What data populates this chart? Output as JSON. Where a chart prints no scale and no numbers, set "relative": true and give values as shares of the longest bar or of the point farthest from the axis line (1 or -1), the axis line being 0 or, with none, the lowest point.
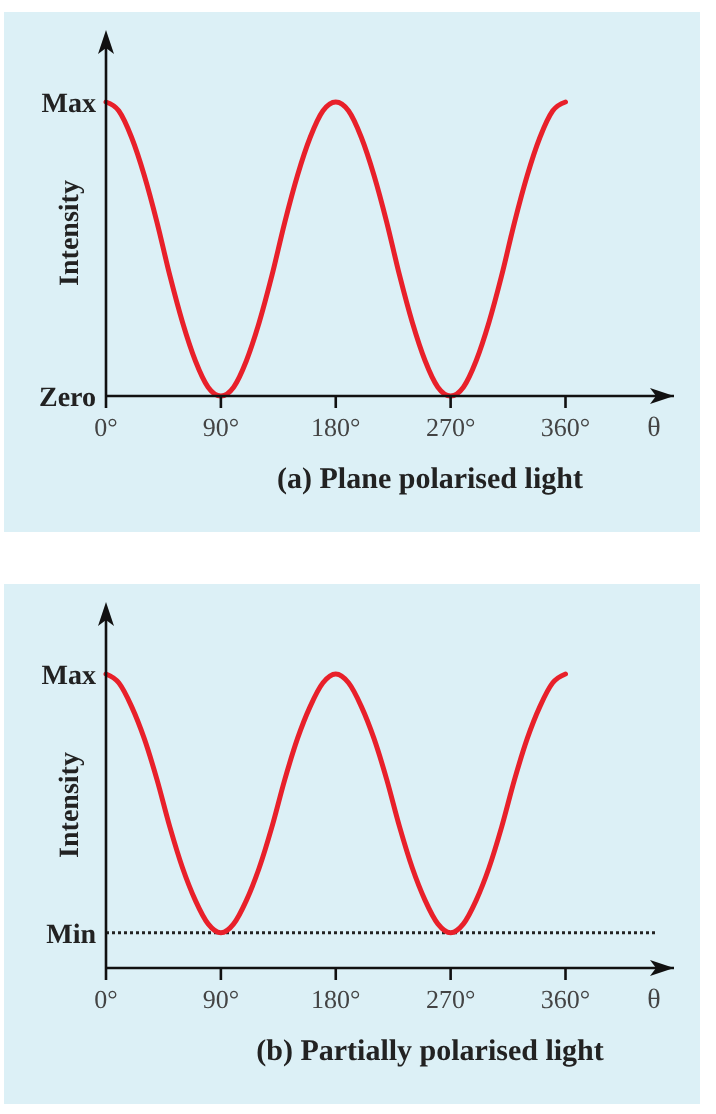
{
  "chart_data": [
    {
      "type": "line",
      "title": "(a) Plane polarised light",
      "xlabel": "θ",
      "ylabel": "Intensity",
      "relative": true,
      "x": [
        0,
        10,
        20,
        30,
        40,
        50,
        60,
        70,
        80,
        90,
        100,
        110,
        120,
        130,
        140,
        150,
        160,
        170,
        180,
        190,
        200,
        210,
        220,
        230,
        240,
        250,
        260,
        270,
        280,
        290,
        300,
        310,
        320,
        330,
        340,
        350,
        360
      ],
      "series": [
        {
          "color": "#e8202a",
          "values": [
            1,
            0.97,
            0.88,
            0.75,
            0.59,
            0.41,
            0.25,
            0.12,
            0.03,
            0,
            0.03,
            0.12,
            0.25,
            0.41,
            0.59,
            0.75,
            0.88,
            0.97,
            1,
            0.97,
            0.88,
            0.75,
            0.59,
            0.41,
            0.25,
            0.12,
            0.03,
            0,
            0.03,
            0.12,
            0.25,
            0.41,
            0.59,
            0.75,
            0.88,
            0.97,
            1
          ]
        }
      ],
      "xlim": [
        0,
        445
      ],
      "xticks": [
        {
          "value": 0,
          "label": "0°"
        },
        {
          "value": 90,
          "label": "90°"
        },
        {
          "value": 180,
          "label": "180°"
        },
        {
          "value": 270,
          "label": "270°"
        },
        {
          "value": 360,
          "label": "360°"
        }
      ],
      "annotations": [
        "Max",
        "Zero"
      ],
      "marker": "none",
      "line_style": "solid"
    },
    {
      "type": "line",
      "title": "(b) Partially polarised light",
      "xlabel": "θ",
      "ylabel": "Intensity",
      "relative": true,
      "x": [
        0,
        10,
        20,
        30,
        40,
        50,
        60,
        70,
        80,
        90,
        100,
        110,
        120,
        130,
        140,
        150,
        160,
        170,
        180,
        190,
        200,
        210,
        220,
        230,
        240,
        250,
        260,
        270,
        280,
        290,
        300,
        310,
        320,
        330,
        340,
        350,
        360
      ],
      "series": [
        {
          "color": "#e8202a",
          "values": [
            1,
            0.97,
            0.89,
            0.78,
            0.64,
            0.48,
            0.34,
            0.23,
            0.15,
            0.12,
            0.15,
            0.23,
            0.34,
            0.48,
            0.64,
            0.78,
            0.89,
            0.97,
            1,
            0.97,
            0.89,
            0.78,
            0.64,
            0.48,
            0.34,
            0.23,
            0.15,
            0.12,
            0.15,
            0.23,
            0.34,
            0.48,
            0.64,
            0.78,
            0.89,
            0.97,
            1
          ]
        }
      ],
      "xlim": [
        0,
        445
      ],
      "xticks": [
        {
          "value": 0,
          "label": "0°"
        },
        {
          "value": 90,
          "label": "90°"
        },
        {
          "value": 180,
          "label": "180°"
        },
        {
          "value": 270,
          "label": "270°"
        },
        {
          "value": 360,
          "label": "360°"
        }
      ],
      "annotations": [
        "Max"
      ],
      "ref_lines": [
        {
          "axis": "y",
          "value": 0.12,
          "label": "Min",
          "color": "#222222",
          "line_style": "dotted"
        }
      ],
      "marker": "none",
      "line_style": "solid"
    }
  ]
}
